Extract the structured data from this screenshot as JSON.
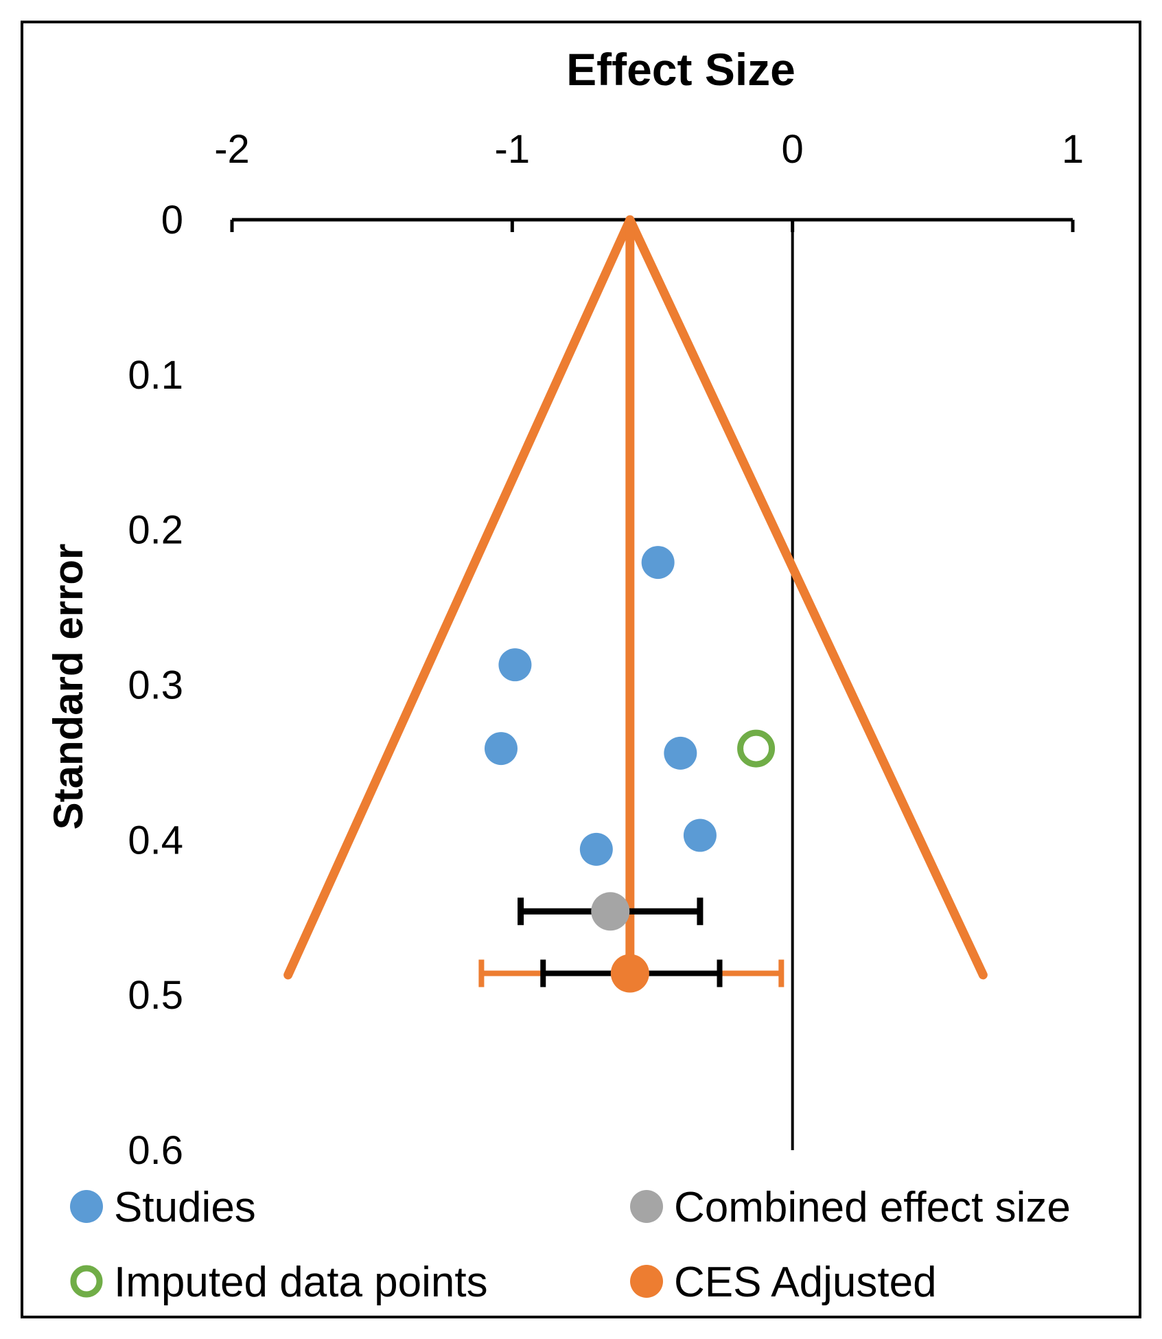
{
  "chart_data": {
    "type": "scatter",
    "subtype": "funnel-plot",
    "title": "Effect Size",
    "xlabel": "Effect Size",
    "ylabel": "Standard error",
    "xlim": [
      -2,
      1
    ],
    "ylim": [
      0,
      0.6
    ],
    "y_inverted": true,
    "x_axis_position": "top",
    "xticks": [
      "-2",
      "-1",
      "0",
      "1"
    ],
    "yticks": [
      "0",
      "0.1",
      "0.2",
      "0.3",
      "0.4",
      "0.5",
      "0.6"
    ],
    "xtick_values": [
      -2,
      -1,
      0,
      1
    ],
    "ytick_values": [
      0,
      0.1,
      0.2,
      0.3,
      0.4,
      0.5,
      0.6
    ],
    "reference_line": {
      "x": 0
    },
    "funnel": {
      "apex": {
        "x": -0.58,
        "y": 0
      },
      "left_end": {
        "x": -1.8,
        "y": 0.487
      },
      "right_end": {
        "x": 0.68,
        "y": 0.487
      },
      "center_line": {
        "x": -0.58,
        "y_from": 0,
        "y_to": 0.487
      },
      "color": "#ED7D31"
    },
    "series": [
      {
        "name": "Studies",
        "marker": "filled-circle",
        "color": "#5B9BD5",
        "points": [
          {
            "x": -0.48,
            "y": 0.221
          },
          {
            "x": -0.99,
            "y": 0.287
          },
          {
            "x": -1.04,
            "y": 0.341
          },
          {
            "x": -0.4,
            "y": 0.344
          },
          {
            "x": -0.33,
            "y": 0.397
          },
          {
            "x": -0.7,
            "y": 0.406
          }
        ]
      },
      {
        "name": "Imputed data points",
        "marker": "open-circle",
        "color": "#70AD47",
        "points": [
          {
            "x": -0.13,
            "y": 0.341
          }
        ]
      },
      {
        "name": "Combined effect size",
        "marker": "filled-circle",
        "color": "#A5A5A5",
        "points": [
          {
            "x": -0.65,
            "y": 0.446
          }
        ],
        "error_bar": {
          "low": -0.97,
          "high": -0.33,
          "color": "#000000"
        }
      },
      {
        "name": "CES Adjusted",
        "marker": "filled-circle",
        "color": "#ED7D31",
        "points": [
          {
            "x": -0.58,
            "y": 0.486
          }
        ],
        "error_bars": [
          {
            "low": -1.11,
            "high": -0.04,
            "color": "#ED7D31"
          },
          {
            "low": -0.89,
            "high": -0.26,
            "color": "#000000"
          }
        ]
      }
    ],
    "legend": {
      "placement": "bottom",
      "items": [
        {
          "label": "Studies",
          "marker": "filled-circle",
          "color": "#5B9BD5"
        },
        {
          "label": "Combined effect size",
          "marker": "filled-circle",
          "color": "#A5A5A5"
        },
        {
          "label": "Imputed data points",
          "marker": "open-circle",
          "color": "#70AD47"
        },
        {
          "label": "CES Adjusted",
          "marker": "filled-circle",
          "color": "#ED7D31"
        }
      ]
    }
  }
}
